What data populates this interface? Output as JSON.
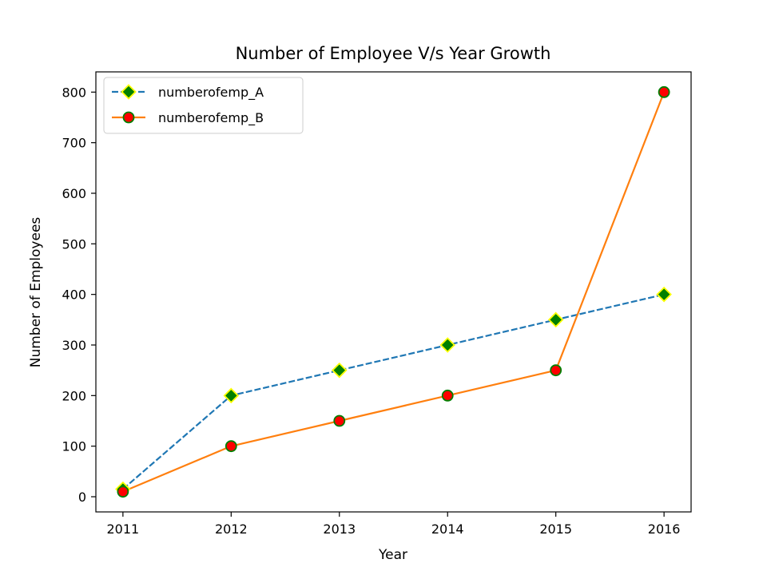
{
  "chart_data": {
    "type": "line",
    "title": "Number of Employee V/s Year Growth",
    "xlabel": "Year",
    "ylabel": "Number of Employees",
    "x": [
      2011,
      2012,
      2013,
      2014,
      2015,
      2016
    ],
    "xlim": [
      2010.75,
      2016.25
    ],
    "ylim": [
      -30,
      840
    ],
    "yticks": [
      0,
      100,
      200,
      300,
      400,
      500,
      600,
      700,
      800
    ],
    "grid": false,
    "legend_position": "top-left",
    "series": [
      {
        "name": "numberofemp_A",
        "values": [
          15,
          200,
          250,
          300,
          350,
          400
        ],
        "line_color": "#1f77b4",
        "line_style": "dashed",
        "marker": "diamond",
        "marker_face": "#008000",
        "marker_edge": "#ffff00"
      },
      {
        "name": "numberofemp_B",
        "values": [
          10,
          100,
          150,
          200,
          250,
          800
        ],
        "line_color": "#ff7f0e",
        "line_style": "solid",
        "marker": "circle",
        "marker_face": "#ff0000",
        "marker_edge": "#008000"
      }
    ]
  }
}
